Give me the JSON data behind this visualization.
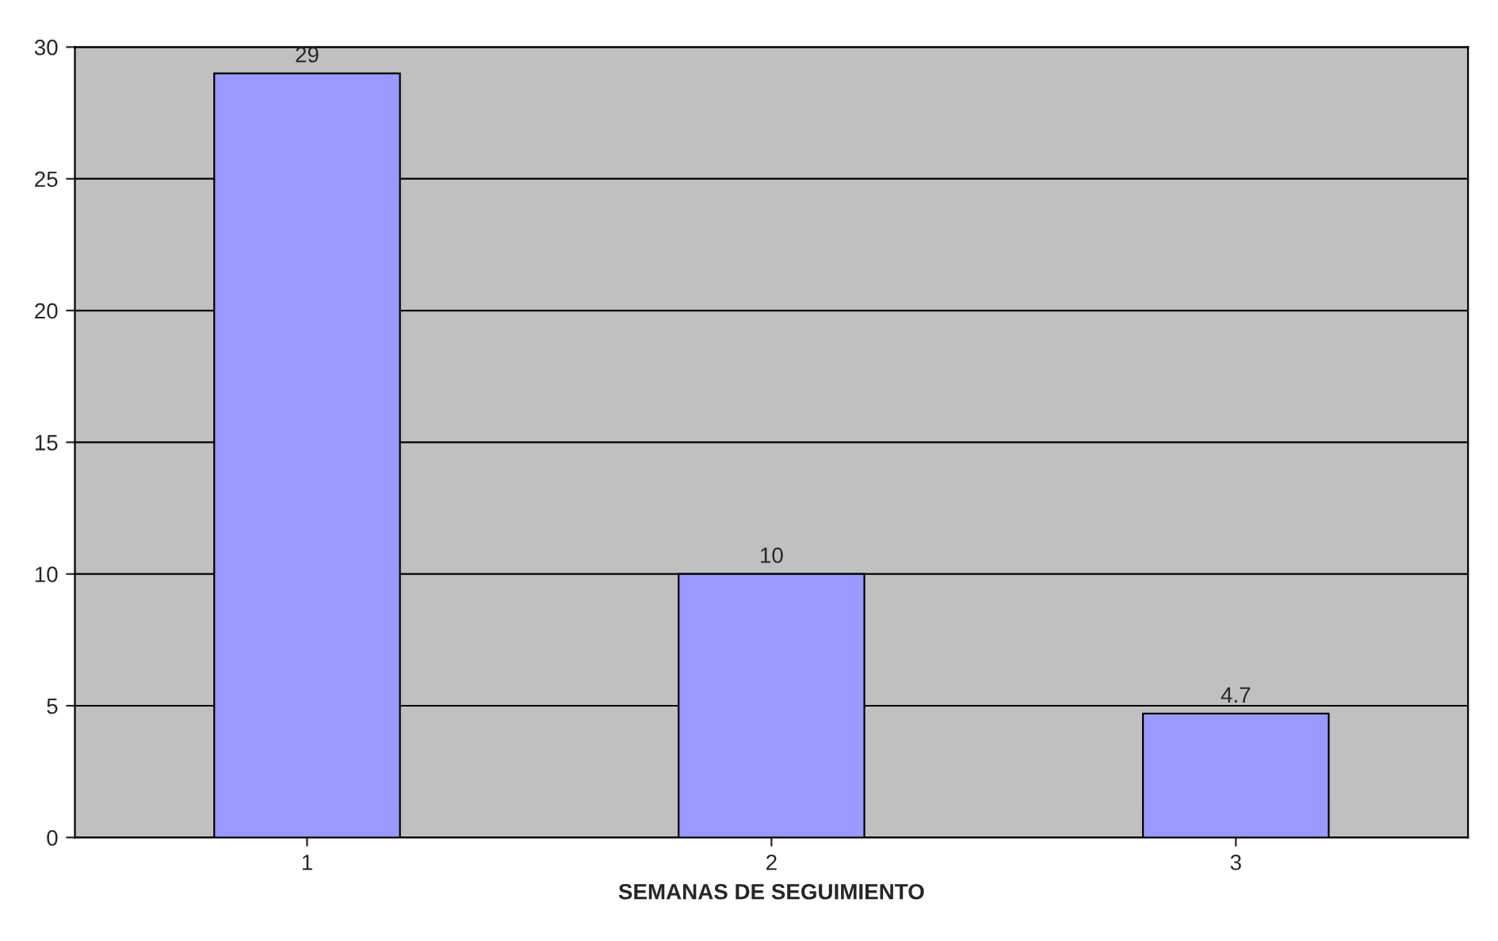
{
  "chart_data": {
    "type": "bar",
    "xlabel": "SEMANAS DE SEGUIMIENTO",
    "categories": [
      "1",
      "2",
      "3"
    ],
    "values": [
      29,
      10,
      4.7
    ],
    "color": "#9999ff",
    "ylim": [
      0,
      30
    ],
    "yticks": [
      0,
      5,
      10,
      15,
      20,
      25,
      30
    ],
    "grid": "y",
    "data_labels": true
  }
}
